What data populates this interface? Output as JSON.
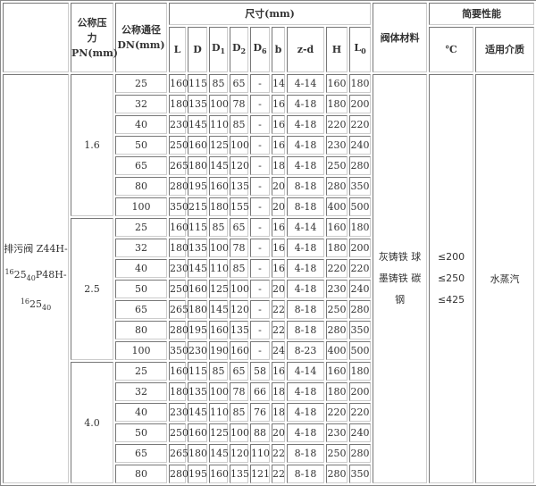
{
  "header": {
    "pressure": [
      "公称压",
      "力",
      "PN(mm)"
    ],
    "diameter": [
      "公称通径",
      "DN(mm)"
    ],
    "dimensions": "尺寸(mm)",
    "material": "阀体材料",
    "performance": "简要性能",
    "temp": "℃",
    "medium": "适用介质",
    "cols": [
      {
        "base": "L",
        "sub": ""
      },
      {
        "base": "D",
        "sub": ""
      },
      {
        "base": "D",
        "sub": "1"
      },
      {
        "base": "D",
        "sub": "2"
      },
      {
        "base": "D",
        "sub": "6"
      },
      {
        "base": "b",
        "sub": ""
      },
      {
        "base": "z-d",
        "sub": ""
      },
      {
        "base": "H",
        "sub": ""
      },
      {
        "base": "L",
        "sub": "0"
      }
    ]
  },
  "product": {
    "line1": "排污阀 Z44H-",
    "a": "16",
    "b": "25",
    "c": "40",
    "mid": "P48H-"
  },
  "material": [
    "灰铸铁 球",
    "墨铸铁 碳",
    "钢"
  ],
  "temps": [
    "≤200",
    "≤250",
    "≤425"
  ],
  "medium": "水蒸汽",
  "groups": [
    {
      "pn": "1.6",
      "rows": [
        [
          "25",
          "160",
          "115",
          "85",
          "65",
          "-",
          "14",
          "4-14",
          "160",
          "180"
        ],
        [
          "32",
          "180",
          "135",
          "100",
          "78",
          "-",
          "16",
          "4-18",
          "180",
          "200"
        ],
        [
          "40",
          "230",
          "145",
          "110",
          "85",
          "-",
          "16",
          "4-18",
          "220",
          "220"
        ],
        [
          "50",
          "250",
          "160",
          "125",
          "100",
          "-",
          "16",
          "4-18",
          "230",
          "240"
        ],
        [
          "65",
          "265",
          "180",
          "145",
          "120",
          "-",
          "18",
          "4-18",
          "250",
          "280"
        ],
        [
          "80",
          "280",
          "195",
          "160",
          "135",
          "-",
          "20",
          "8-18",
          "280",
          "350"
        ],
        [
          "100",
          "350",
          "215",
          "180",
          "155",
          "-",
          "20",
          "8-18",
          "400",
          "500"
        ]
      ]
    },
    {
      "pn": "2.5",
      "rows": [
        [
          "25",
          "160",
          "115",
          "85",
          "65",
          "-",
          "16",
          "4-14",
          "160",
          "180"
        ],
        [
          "32",
          "180",
          "135",
          "100",
          "78",
          "-",
          "16",
          "4-18",
          "180",
          "200"
        ],
        [
          "40",
          "230",
          "145",
          "110",
          "85",
          "-",
          "16",
          "4-18",
          "220",
          "220"
        ],
        [
          "50",
          "250",
          "160",
          "125",
          "100",
          "-",
          "20",
          "4-18",
          "230",
          "240"
        ],
        [
          "65",
          "265",
          "180",
          "145",
          "120",
          "-",
          "22",
          "8-18",
          "250",
          "280"
        ],
        [
          "80",
          "280",
          "195",
          "160",
          "135",
          "-",
          "22",
          "8-18",
          "280",
          "350"
        ],
        [
          "100",
          "350",
          "230",
          "190",
          "160",
          "-",
          "24",
          "8-23",
          "400",
          "500"
        ]
      ]
    },
    {
      "pn": "4.0",
      "rows": [
        [
          "25",
          "160",
          "115",
          "85",
          "65",
          "58",
          "16",
          "4-14",
          "160",
          "180"
        ],
        [
          "32",
          "180",
          "135",
          "100",
          "78",
          "66",
          "18",
          "4-18",
          "180",
          "200"
        ],
        [
          "40",
          "230",
          "145",
          "110",
          "85",
          "76",
          "18",
          "4-18",
          "220",
          "220"
        ],
        [
          "50",
          "250",
          "160",
          "125",
          "100",
          "88",
          "20",
          "4-18",
          "230",
          "240"
        ],
        [
          "65",
          "265",
          "180",
          "145",
          "120",
          "110",
          "22",
          "8-18",
          "250",
          "280"
        ],
        [
          "80",
          "280",
          "195",
          "160",
          "135",
          "121",
          "22",
          "8-18",
          "280",
          "350"
        ]
      ]
    }
  ]
}
